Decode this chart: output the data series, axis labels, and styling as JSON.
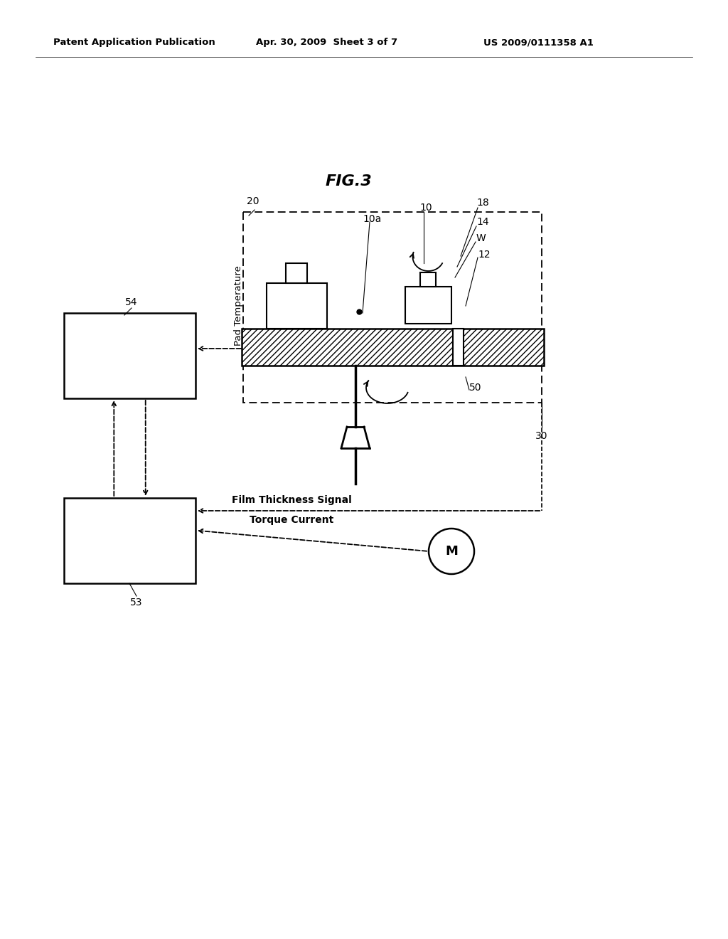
{
  "bg_color": "#ffffff",
  "title": "FIG.3",
  "header_left": "Patent Application Publication",
  "header_mid": "Apr. 30, 2009  Sheet 3 of 7",
  "header_right": "US 2009/0111358 A1",
  "pad_temp_label": "Pad Temperature",
  "torque_label": "Torque Current",
  "film_label": "Film Thickness Signal"
}
